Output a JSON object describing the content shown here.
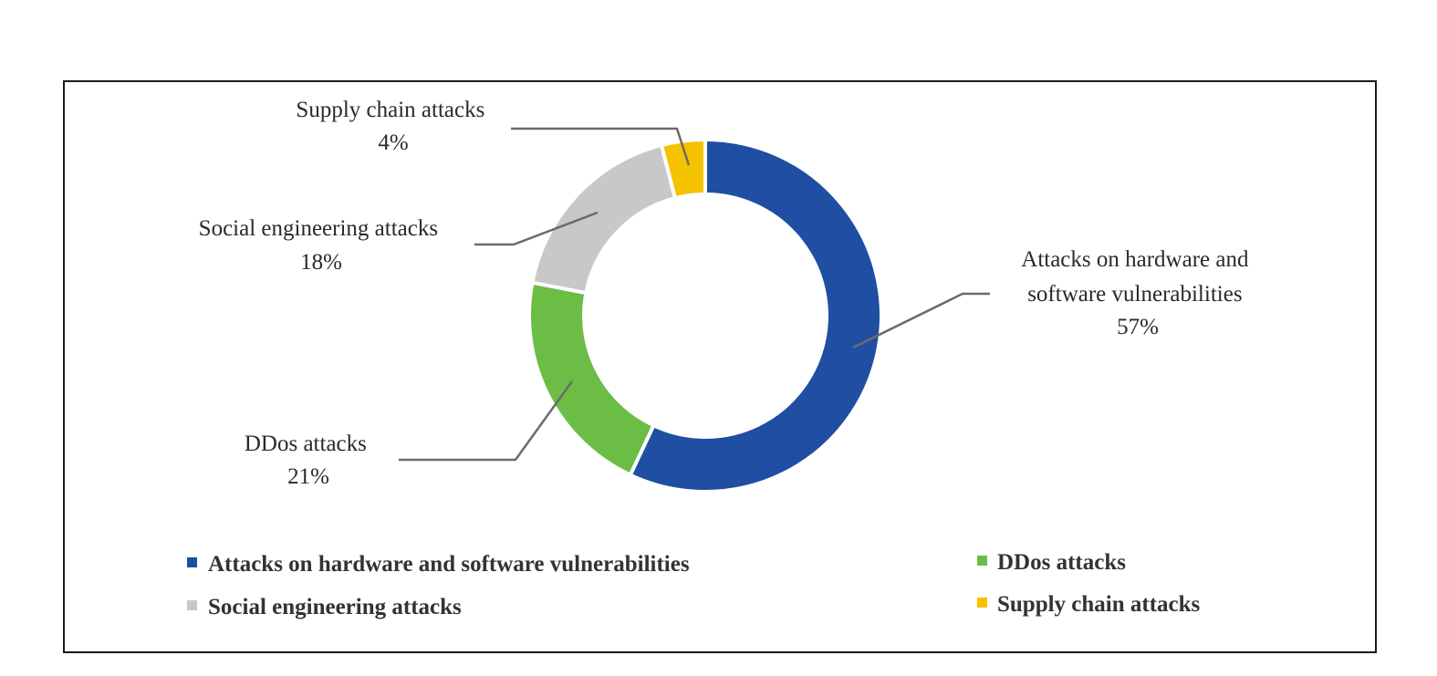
{
  "chart_data": {
    "type": "pie",
    "variant": "donut",
    "title": "",
    "slices": [
      {
        "label": "Attacks on hardware and software vulnerabilities",
        "value": 57,
        "value_label": "57%",
        "color": "#1f4ea3",
        "callout_lines": [
          "Attacks on hardware and",
          "software vulnerabilities",
          "57%"
        ]
      },
      {
        "label": "DDos attacks",
        "value": 21,
        "value_label": "21%",
        "color": "#6cbd45",
        "callout_lines": [
          "DDos attacks",
          "21%"
        ]
      },
      {
        "label": "Social engineering attacks",
        "value": 18,
        "value_label": "18%",
        "color": "#c8c8c8",
        "callout_lines": [
          "Social engineering attacks",
          "18%"
        ]
      },
      {
        "label": "Supply chain attacks",
        "value": 4,
        "value_label": "4%",
        "color": "#f5c200",
        "callout_lines": [
          "Supply chain attacks",
          "4%"
        ]
      }
    ],
    "legend": {
      "position": "bottom",
      "items": [
        {
          "label": "Attacks on hardware and software vulnerabilities",
          "color": "#1f4ea3"
        },
        {
          "label": "DDos attacks",
          "color": "#6cbd45"
        },
        {
          "label": "Social engineering attacks",
          "color": "#c8c8c8"
        },
        {
          "label": "Supply chain attacks",
          "color": "#f5c200"
        }
      ]
    }
  }
}
